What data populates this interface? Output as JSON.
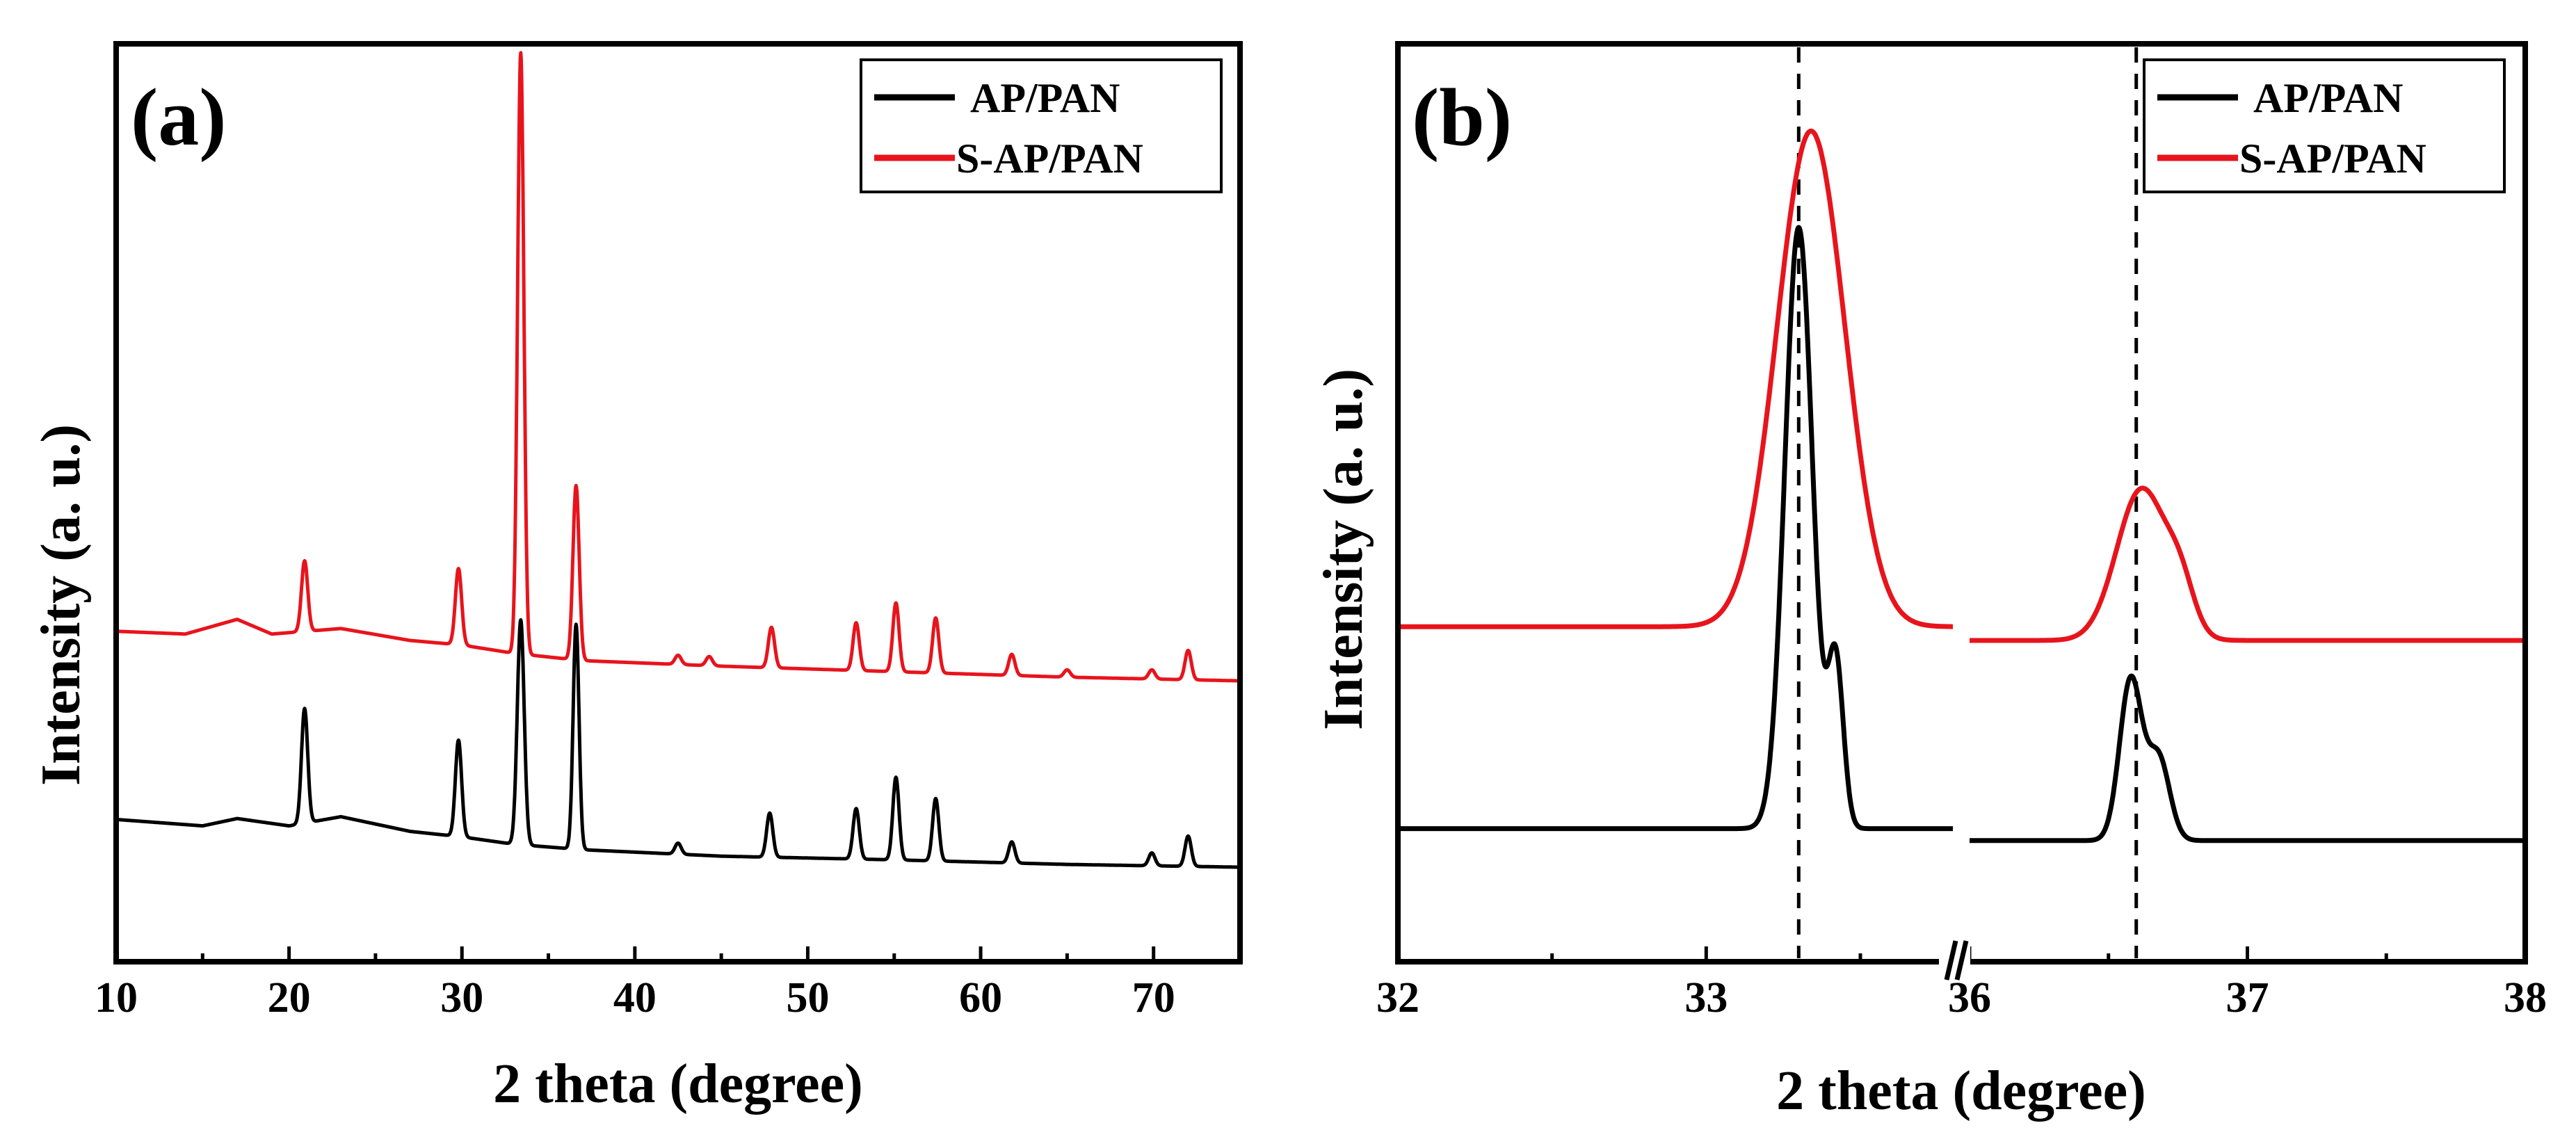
{
  "figure": {
    "background": "#ffffff"
  },
  "chart_data": [
    {
      "type": "line",
      "panel_label": "(a)",
      "title": "",
      "xlabel": "2 theta (degree)",
      "ylabel": "Intensity (a. u.)",
      "xlim": [
        10,
        75
      ],
      "ylim": [
        0,
        100
      ],
      "xticks": [
        10,
        20,
        30,
        40,
        50,
        60,
        70
      ],
      "xtick_labels": [
        "10",
        "20",
        "30",
        "40",
        "50",
        "60",
        "70"
      ],
      "grid": false,
      "legend_position": "top-right",
      "series": [
        {
          "name": "AP/PAN",
          "color": "#000000",
          "baseline": [
            [
              10,
              15.5
            ],
            [
              15,
              14.8
            ],
            [
              17,
              15.6
            ],
            [
              20,
              14.8
            ],
            [
              23,
              15.8
            ],
            [
              27,
              14.2
            ],
            [
              30,
              13.6
            ],
            [
              33,
              12.8
            ],
            [
              37,
              12.2
            ],
            [
              45,
              11.5
            ],
            [
              55,
              11.1
            ],
            [
              65,
              10.6
            ],
            [
              75,
              10.3
            ]
          ],
          "peaks": [
            {
              "x": 20.9,
              "h": 12.5,
              "w": 0.18
            },
            {
              "x": 29.8,
              "h": 10.5,
              "w": 0.18
            },
            {
              "x": 33.4,
              "h": 24.5,
              "w": 0.2
            },
            {
              "x": 36.6,
              "h": 24.5,
              "w": 0.17
            },
            {
              "x": 42.5,
              "h": 1.2,
              "w": 0.18
            },
            {
              "x": 47.8,
              "h": 4.8,
              "w": 0.18
            },
            {
              "x": 52.8,
              "h": 5.5,
              "w": 0.18
            },
            {
              "x": 55.1,
              "h": 9.0,
              "w": 0.18
            },
            {
              "x": 57.4,
              "h": 6.8,
              "w": 0.18
            },
            {
              "x": 61.8,
              "h": 2.3,
              "w": 0.18
            },
            {
              "x": 69.9,
              "h": 1.4,
              "w": 0.18
            },
            {
              "x": 72.0,
              "h": 3.3,
              "w": 0.18
            }
          ]
        },
        {
          "name": "S-AP/PAN",
          "color": "#e8141c",
          "baseline": [
            [
              10,
              36.0
            ],
            [
              14,
              35.7
            ],
            [
              17,
              37.3
            ],
            [
              19,
              35.7
            ],
            [
              23,
              36.3
            ],
            [
              27,
              35.0
            ],
            [
              30,
              34.5
            ],
            [
              33,
              33.6
            ],
            [
              37,
              32.8
            ],
            [
              45,
              32.2
            ],
            [
              55,
              31.6
            ],
            [
              65,
              31.0
            ],
            [
              75,
              30.6
            ]
          ],
          "peaks": [
            {
              "x": 20.9,
              "h": 7.7,
              "w": 0.18
            },
            {
              "x": 29.8,
              "h": 8.3,
              "w": 0.18
            },
            {
              "x": 33.4,
              "h": 65.5,
              "w": 0.18
            },
            {
              "x": 36.6,
              "h": 19.0,
              "w": 0.18
            },
            {
              "x": 42.5,
              "h": 1.0,
              "w": 0.18
            },
            {
              "x": 44.3,
              "h": 1.0,
              "w": 0.18
            },
            {
              "x": 47.9,
              "h": 4.4,
              "w": 0.18
            },
            {
              "x": 52.8,
              "h": 5.2,
              "w": 0.18
            },
            {
              "x": 55.1,
              "h": 7.5,
              "w": 0.18
            },
            {
              "x": 57.4,
              "h": 6.0,
              "w": 0.18
            },
            {
              "x": 61.8,
              "h": 2.3,
              "w": 0.18
            },
            {
              "x": 65.0,
              "h": 0.8,
              "w": 0.18
            },
            {
              "x": 69.9,
              "h": 1.0,
              "w": 0.18
            },
            {
              "x": 72.0,
              "h": 3.2,
              "w": 0.18
            }
          ]
        }
      ]
    },
    {
      "type": "line",
      "panel_label": "(b)",
      "title": "",
      "xlabel": "2 theta (degree)",
      "ylabel": "Intensity (a. u.)",
      "axis_break": "between 33.8 and 36",
      "segments": [
        {
          "xlim": [
            32,
            33.8
          ],
          "xticks": [
            32,
            33
          ],
          "xtick_labels": [
            "32",
            "33"
          ]
        },
        {
          "xlim": [
            36,
            38
          ],
          "xticks": [
            36,
            37,
            38
          ],
          "xtick_labels": [
            "36",
            "37",
            "38"
          ]
        }
      ],
      "reference_lines": [
        33.3,
        36.6
      ],
      "ylim": [
        0,
        100
      ],
      "grid": false,
      "legend_position": "top-right",
      "series": [
        {
          "name": "AP/PAN",
          "color": "#000000",
          "segments": [
            {
              "baseline": 14.5,
              "peaks": [
                {
                  "x": 33.3,
                  "h": 65.5,
                  "w": 0.045
                },
                {
                  "x": 33.42,
                  "h": 18.0,
                  "w": 0.025
                }
              ]
            },
            {
              "baseline": 13.2,
              "peaks": [
                {
                  "x": 36.58,
                  "h": 17.5,
                  "w": 0.04
                },
                {
                  "x": 36.68,
                  "h": 9.0,
                  "w": 0.04
                }
              ]
            }
          ]
        },
        {
          "name": "S-AP/PAN",
          "color": "#e8141c",
          "segments": [
            {
              "baseline": 36.5,
              "peaks": [
                {
                  "x": 33.34,
                  "h": 54.0,
                  "w": 0.11
                }
              ]
            },
            {
              "baseline": 35.0,
              "peaks": [
                {
                  "x": 36.62,
                  "h": 16.5,
                  "w": 0.09
                },
                {
                  "x": 36.76,
                  "h": 4.5,
                  "w": 0.05
                }
              ]
            }
          ]
        }
      ]
    }
  ]
}
